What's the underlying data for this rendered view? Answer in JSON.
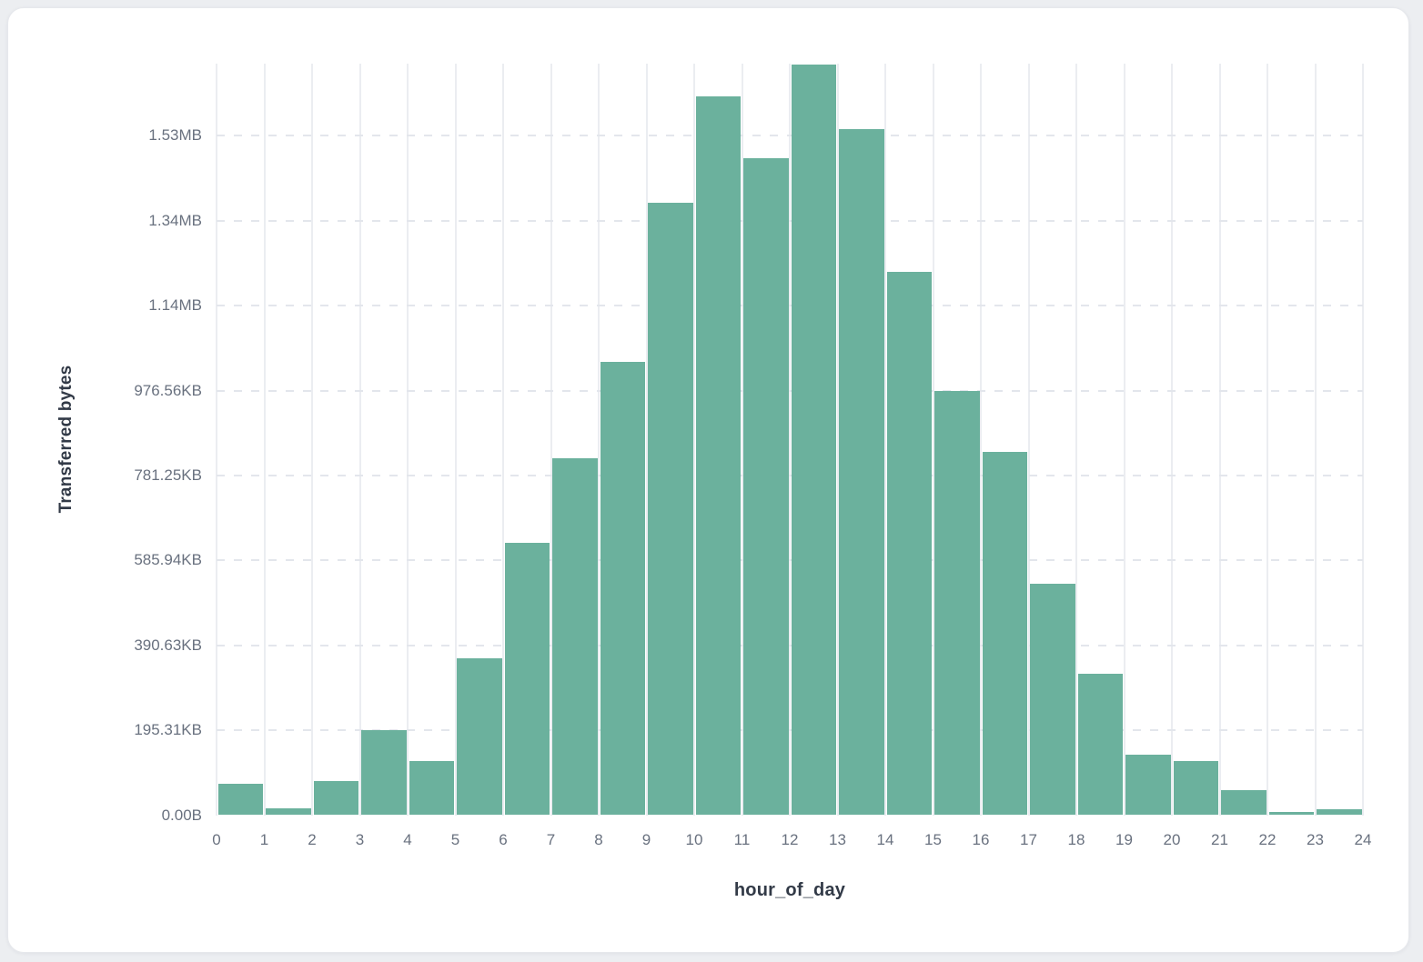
{
  "page": {
    "background_color": "#eceef1",
    "card_background": "#ffffff",
    "card_border_color": "#e6e8ec"
  },
  "chart_data": {
    "type": "bar",
    "title": "",
    "xlabel": "hour_of_day",
    "ylabel": "Transferred bytes",
    "categories": [
      0,
      1,
      2,
      3,
      4,
      5,
      6,
      7,
      8,
      9,
      10,
      11,
      12,
      13,
      14,
      15,
      16,
      17,
      18,
      19,
      20,
      21,
      22,
      23
    ],
    "values": [
      73000,
      17000,
      79500,
      199500,
      126500,
      369000,
      640500,
      839500,
      1066500,
      1443000,
      1692000,
      1546500,
      1767000,
      1615000,
      1280500,
      998000,
      856500,
      544000,
      332000,
      141500,
      126500,
      58000,
      6500,
      13000
    ],
    "values_unit": "bytes",
    "x_tick_labels": [
      "0",
      "1",
      "2",
      "3",
      "4",
      "5",
      "6",
      "7",
      "8",
      "9",
      "10",
      "11",
      "12",
      "13",
      "14",
      "15",
      "16",
      "17",
      "18",
      "19",
      "20",
      "21",
      "22",
      "23",
      "24"
    ],
    "y_tick_labels": [
      "0.00B",
      "195.31KB",
      "390.63KB",
      "585.94KB",
      "781.25KB",
      "976.56KB",
      "1.14MB",
      "1.34MB",
      "1.53MB"
    ],
    "y_tick_bytes": [
      0,
      200000,
      400000,
      600000,
      800000,
      1000000,
      1200000,
      1400000,
      1600000
    ],
    "ylim": [
      0,
      1770000
    ],
    "bar_color": "#6bb19d",
    "grid": {
      "vertical": "solid",
      "horizontal": "dashed"
    },
    "legend": "none"
  },
  "colors": {
    "tick_label": "#69717f",
    "axis_title": "#323a47",
    "grid_vertical": "#ebedf1",
    "grid_horizontal": "#e3e6ec"
  }
}
